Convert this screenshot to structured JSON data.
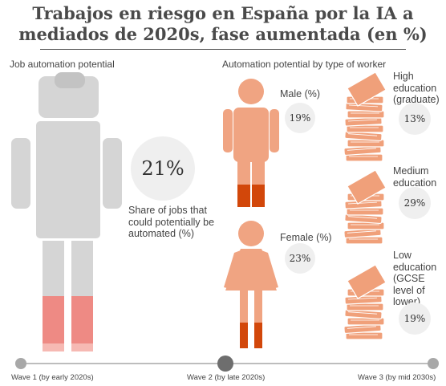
{
  "title_line1": "Trabajos en riesgo en España por la IA a",
  "title_line2": "mediados de 2020s, fase aumentada (en %)",
  "left_section": {
    "heading": "Job automation potential",
    "share_value": "21%",
    "share_caption": "Share of jobs that could potentially be automated (%)"
  },
  "right_section": {
    "heading": "Automation potential by type of worker",
    "male": {
      "label": "Male (%)",
      "value": "19%"
    },
    "female": {
      "label": "Female (%)",
      "value": "23%"
    },
    "high": {
      "label": "High education (graduate)",
      "value": "13%"
    },
    "medium": {
      "label": "Medium education",
      "value": "29%"
    },
    "low": {
      "label": "Low education (GCSE level of lower)",
      "value": "19%"
    }
  },
  "timeline": {
    "wave1": "Wave 1 (by early 2020s)",
    "wave2": "Wave 2 (by late 2020s)",
    "wave3": "Wave 3 (by mid 2030s)",
    "selected": "wave2"
  },
  "colors": {
    "robot_gray": "#d5d5d5",
    "robot_fill": "#ee8a84",
    "person_body": "#f0a482",
    "person_fill": "#d2470a",
    "book": "#f0a07a"
  }
}
